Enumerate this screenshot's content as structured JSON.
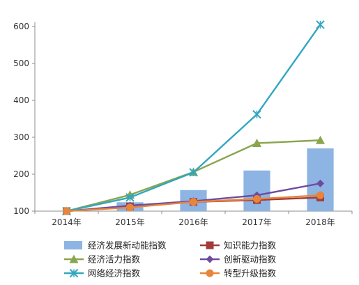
{
  "chart_data": {
    "type": "bar+line",
    "categories": [
      "2014年",
      "2015年",
      "2016年",
      "2017年",
      "2018年"
    ],
    "ylim": [
      100,
      600
    ],
    "yticks": [
      100,
      200,
      300,
      400,
      500,
      600
    ],
    "grid": false,
    "legend_position": "bottom",
    "bar_series": {
      "name": "经济发展新动能指数",
      "color": "#8DB4E2",
      "values": [
        100,
        124,
        157,
        210,
        270
      ]
    },
    "line_series": [
      {
        "name": "知识能力指数",
        "color": "#A33B3B",
        "marker": "square",
        "values": [
          100,
          113,
          125,
          130,
          137
        ]
      },
      {
        "name": "创新驱动指数",
        "color": "#6E4B9E",
        "marker": "diamond",
        "values": [
          100,
          115,
          127,
          143,
          175
        ]
      },
      {
        "name": "经济活力指数",
        "color": "#89A54E",
        "marker": "triangle",
        "values": [
          100,
          144,
          206,
          284,
          292
        ]
      },
      {
        "name": "网络经济指数",
        "color": "#31A7BF",
        "marker": "x",
        "values": [
          100,
          137,
          205,
          362,
          605
        ]
      },
      {
        "name": "转型升级指数",
        "color": "#E8853A",
        "marker": "circle",
        "values": [
          100,
          110,
          125,
          133,
          143
        ]
      }
    ]
  }
}
